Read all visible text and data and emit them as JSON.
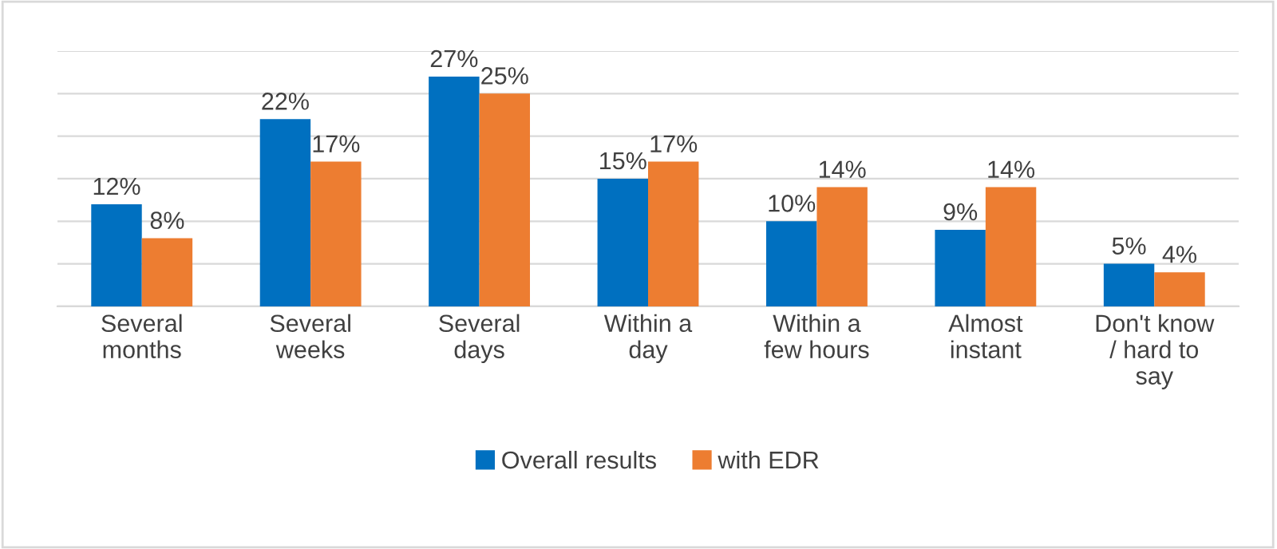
{
  "chart_data": {
    "type": "bar",
    "categories": [
      "Several\nmonths",
      "Several\nweeks",
      "Several\ndays",
      "Within a\nday",
      "Within a\nfew hours",
      "Almost\ninstant",
      "Don't know\n/ hard to\nsay"
    ],
    "series": [
      {
        "name": "Overall results",
        "color": "#0070c0",
        "values": [
          12,
          22,
          27,
          15,
          10,
          9,
          5
        ],
        "value_labels": [
          "12%",
          "22%",
          "27%",
          "15%",
          "10%",
          "9%",
          "5%"
        ]
      },
      {
        "name": "with EDR",
        "color": "#ed7d31",
        "values": [
          8,
          17,
          25,
          17,
          14,
          14,
          4
        ],
        "value_labels": [
          "8%",
          "17%",
          "25%",
          "17%",
          "14%",
          "14%",
          "4%"
        ]
      }
    ],
    "ylim": [
      0,
      30
    ],
    "yticks": [
      {
        "value": 0,
        "label": null
      },
      {
        "value": 5,
        "label": null
      },
      {
        "value": 10,
        "label": null
      },
      {
        "value": 15,
        "label": null
      },
      {
        "value": 20,
        "label": null
      },
      {
        "value": 25,
        "label": null
      },
      {
        "value": 30,
        "label": null
      }
    ],
    "tick_labels": "x",
    "grid": "y",
    "legend": "bottom"
  }
}
